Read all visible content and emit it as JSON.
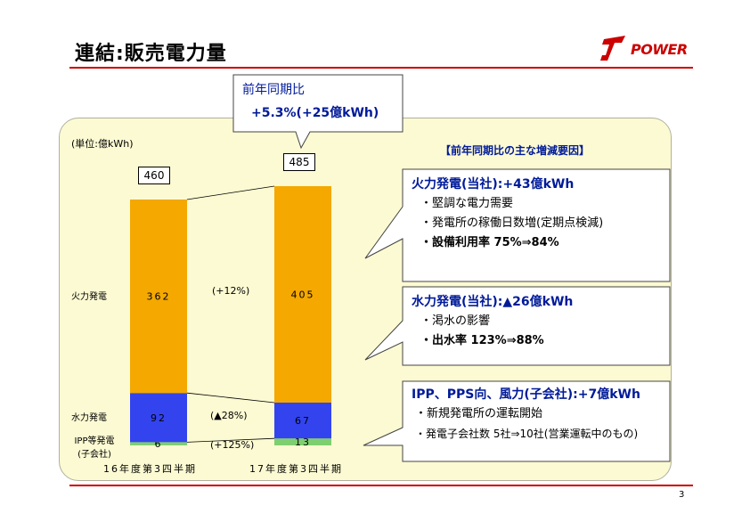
{
  "header": {
    "title": "連結:販売電力量",
    "logo_text": "POWER",
    "page_number": "3"
  },
  "summary_callout": {
    "line1": "前年同期比",
    "line2": "+5.3%(+25億kWh)"
  },
  "factors_heading": "【前年同期比の主な増減要因】",
  "factors": [
    {
      "title": "火力発電(当社):+43億kWh",
      "items": [
        "・堅調な電力需要",
        "・発電所の稼働日数増(定期点検減)",
        "・設備利用率 75%⇒84%"
      ]
    },
    {
      "title": "水力発電(当社):▲26億kWh",
      "items": [
        "・渇水の影響",
        "・出水率 123%⇒88%"
      ]
    },
    {
      "title": "IPP、PPS向、風力(子会社):+7億kWh",
      "items": [
        "・新規発電所の運転開始",
        "・発電子会社数 5社⇒10社(営業運転中のもの)"
      ]
    }
  ],
  "chart_data": {
    "type": "bar",
    "stacked": true,
    "unit_label": "(単位:億kWh)",
    "categories": [
      "16年度第3四半期",
      "17年度第3四半期"
    ],
    "totals": [
      "460",
      "485"
    ],
    "series": [
      {
        "name": "IPP等発電 (子会社)",
        "name_line1": "IPP等発電",
        "name_line2": "(子会社)",
        "values": [
          6,
          13
        ],
        "labels": [
          "6",
          "13"
        ],
        "color": "#7ecf6e",
        "yoy": "(+125%)"
      },
      {
        "name": "水力発電",
        "values": [
          92,
          67
        ],
        "labels": [
          "92",
          "67"
        ],
        "color": "#3344ee",
        "yoy": "(▲28%)"
      },
      {
        "name": "火力発電",
        "values": [
          362,
          405
        ],
        "labels": [
          "362",
          "405"
        ],
        "color": "#f4a800",
        "yoy": "(+12%)"
      }
    ]
  }
}
